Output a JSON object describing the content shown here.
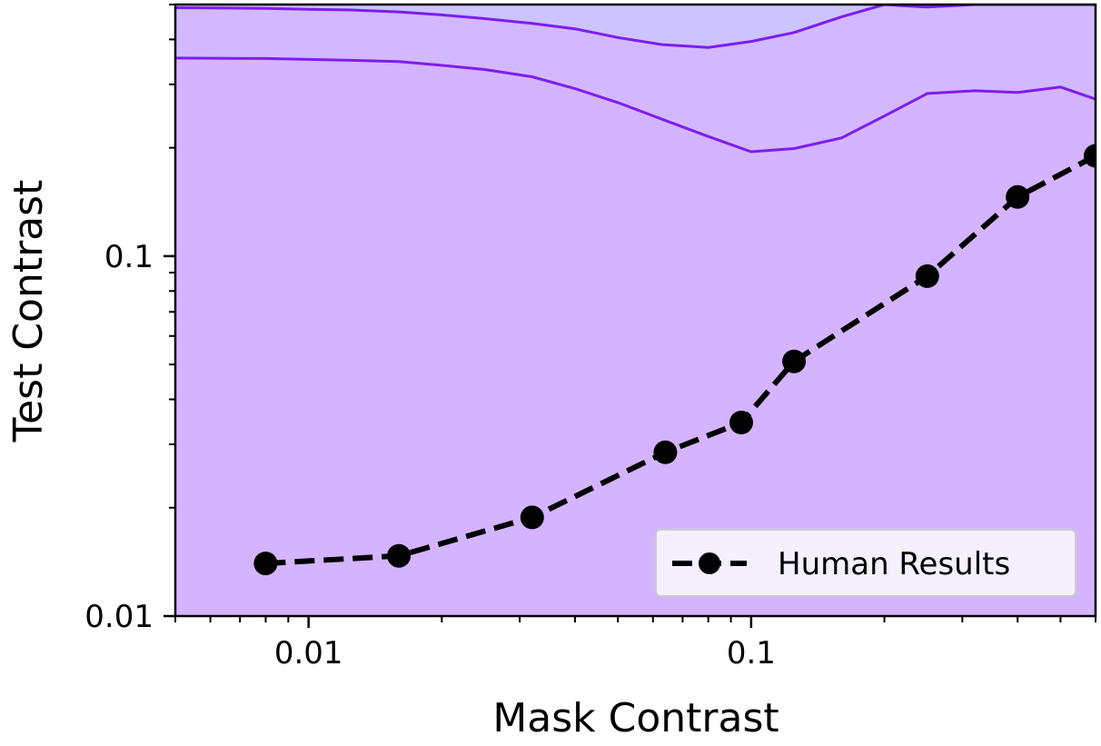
{
  "chart_data": {
    "type": "line",
    "title": "",
    "xlabel": "Mask Contrast",
    "ylabel": "Test Contrast",
    "xscale": "log",
    "yscale": "log",
    "xlim": [
      0.005,
      0.6
    ],
    "ylim": [
      0.01,
      0.5
    ],
    "x_ticks": [
      {
        "value": 0.01,
        "label": "0.01"
      },
      {
        "value": 0.1,
        "label": "0.1"
      }
    ],
    "y_ticks": [
      {
        "value": 0.01,
        "label": "0.01"
      },
      {
        "value": 0.1,
        "label": "0.1"
      }
    ],
    "grid": false,
    "legend": {
      "position": "bottom-right",
      "entries": [
        "Human Results"
      ]
    },
    "series": [
      {
        "name": "Human Results",
        "style": "dashed-with-markers",
        "color": "#000000",
        "x": [
          0.008,
          0.016,
          0.032,
          0.064,
          0.095,
          0.125,
          0.25,
          0.4,
          0.6
        ],
        "y": [
          0.014,
          0.0147,
          0.0188,
          0.0285,
          0.0345,
          0.051,
          0.088,
          0.146,
          0.19
        ]
      }
    ],
    "contour_bands": {
      "x": [
        0.005,
        0.008,
        0.01,
        0.0125,
        0.016,
        0.02,
        0.025,
        0.032,
        0.04,
        0.05,
        0.063,
        0.08,
        0.1,
        0.125,
        0.16,
        0.2,
        0.25,
        0.32,
        0.4,
        0.5,
        0.6
      ],
      "lower_contour_y": [
        0.355,
        0.354,
        0.352,
        0.35,
        0.347,
        0.339,
        0.33,
        0.315,
        0.292,
        0.267,
        0.24,
        0.215,
        0.195,
        0.199,
        0.213,
        0.245,
        0.283,
        0.288,
        0.285,
        0.295,
        0.273
      ],
      "upper_contour_y": [
        0.49,
        0.488,
        0.485,
        0.483,
        0.477,
        0.468,
        0.457,
        0.443,
        0.428,
        0.405,
        0.387,
        0.38,
        0.395,
        0.418,
        0.462,
        0.5,
        0.492,
        0.5,
        0.5,
        0.5,
        0.5
      ],
      "fill_below_lower": "#d4b4fe",
      "fill_between": "#d2b9ff",
      "fill_above_upper": "#cdc4ff",
      "line_color": "#7f1cf2"
    },
    "legend_box_fill": "#f5effe"
  }
}
